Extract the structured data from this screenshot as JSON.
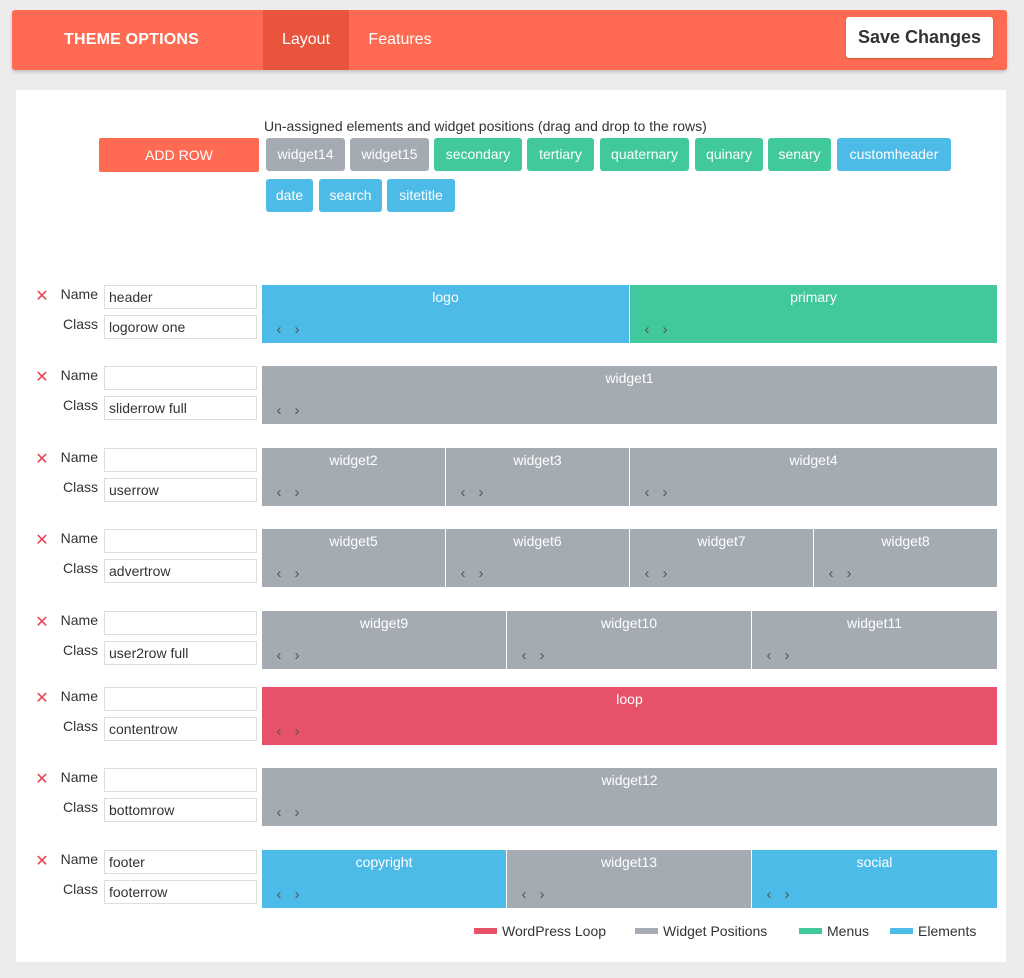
{
  "header": {
    "title": "THEME OPTIONS",
    "tabs": [
      {
        "label": "Layout",
        "active": true
      },
      {
        "label": "Features",
        "active": false
      }
    ],
    "save_label": "Save Changes"
  },
  "unassigned": {
    "title": "Un-assigned elements and widget positions (drag and drop to the rows)",
    "add_row_label": "ADD ROW",
    "chips": [
      {
        "label": "widget14",
        "kind": "widget"
      },
      {
        "label": "widget15",
        "kind": "widget"
      },
      {
        "label": "secondary",
        "kind": "menu"
      },
      {
        "label": "tertiary",
        "kind": "menu"
      },
      {
        "label": "quaternary",
        "kind": "menu"
      },
      {
        "label": "quinary",
        "kind": "menu"
      },
      {
        "label": "senary",
        "kind": "menu"
      },
      {
        "label": "customheader",
        "kind": "element"
      },
      {
        "label": "date",
        "kind": "element"
      },
      {
        "label": "search",
        "kind": "element"
      },
      {
        "label": "sitetitle",
        "kind": "element"
      }
    ]
  },
  "field_labels": {
    "name": "Name",
    "class": "Class"
  },
  "delete_glyph": "✕",
  "arrow_left": "‹",
  "arrow_right": "›",
  "rows": [
    {
      "name": "header",
      "class": "logorow one",
      "cells": [
        {
          "label": "logo",
          "kind": "element"
        },
        {
          "label": "primary",
          "kind": "menu"
        }
      ]
    },
    {
      "name": "",
      "class": "sliderrow full",
      "cells": [
        {
          "label": "widget1",
          "kind": "widget"
        }
      ]
    },
    {
      "name": "",
      "class": "userrow",
      "cells": [
        {
          "label": "widget2",
          "kind": "widget"
        },
        {
          "label": "widget3",
          "kind": "widget"
        },
        {
          "label": "widget4",
          "kind": "widget"
        }
      ]
    },
    {
      "name": "",
      "class": "advertrow",
      "cells": [
        {
          "label": "widget5",
          "kind": "widget"
        },
        {
          "label": "widget6",
          "kind": "widget"
        },
        {
          "label": "widget7",
          "kind": "widget"
        },
        {
          "label": "widget8",
          "kind": "widget"
        }
      ]
    },
    {
      "name": "",
      "class": "user2row full",
      "cells": [
        {
          "label": "widget9",
          "kind": "widget"
        },
        {
          "label": "widget10",
          "kind": "widget"
        },
        {
          "label": "widget11",
          "kind": "widget"
        }
      ]
    },
    {
      "name": "",
      "class": "contentrow",
      "cells": [
        {
          "label": "loop",
          "kind": "loop"
        }
      ]
    },
    {
      "name": "",
      "class": "bottomrow",
      "cells": [
        {
          "label": "widget12",
          "kind": "widget"
        }
      ]
    },
    {
      "name": "footer",
      "class": "footerrow",
      "cells": [
        {
          "label": "copyright",
          "kind": "element"
        },
        {
          "label": "widget13",
          "kind": "widget"
        },
        {
          "label": "social",
          "kind": "element"
        }
      ]
    }
  ],
  "legend": [
    {
      "label": "WordPress Loop",
      "color": "#e8516a"
    },
    {
      "label": "Widget Positions",
      "color": "#a4abb3"
    },
    {
      "label": "Menus",
      "color": "#41c89c"
    },
    {
      "label": "Elements",
      "color": "#4dbbe8"
    }
  ],
  "colors": {
    "accent": "#ff6b52",
    "widget": "#a4abb3",
    "menu": "#41c89c",
    "element": "#4dbbe8",
    "loop": "#e8516a"
  }
}
